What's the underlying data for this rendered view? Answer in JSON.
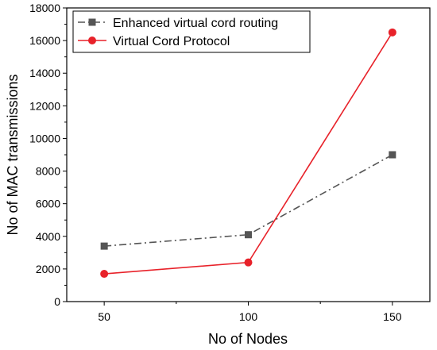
{
  "chart_data": {
    "type": "line",
    "title": "",
    "xlabel": "No of Nodes",
    "ylabel": "No of MAC transmissions",
    "x": [
      50,
      100,
      150
    ],
    "xticks": [
      50,
      100,
      150
    ],
    "xlim": [
      37,
      163
    ],
    "ylim": [
      0,
      18000
    ],
    "yticks": [
      0,
      2000,
      4000,
      6000,
      8000,
      10000,
      12000,
      14000,
      16000,
      18000
    ],
    "grid": false,
    "legend_position": "top-left",
    "series": [
      {
        "name": "Enhanced virtual cord routing",
        "values": [
          3400,
          4100,
          9000
        ],
        "color": "#555555",
        "line_style": "dash-dot",
        "marker": "square"
      },
      {
        "name": "Virtual Cord Protocol",
        "values": [
          1700,
          2400,
          16500
        ],
        "color": "#e8222a",
        "line_style": "solid",
        "marker": "circle"
      }
    ]
  }
}
